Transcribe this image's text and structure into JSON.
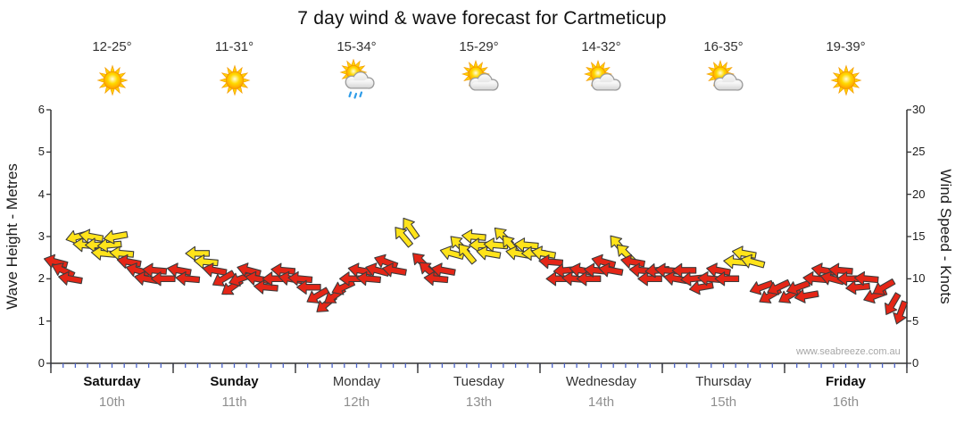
{
  "title": "7 day wind & wave forecast for Cartmeticup",
  "watermark": "www.seabreeze.com.au",
  "left_axis": {
    "label": "Wave Height - Metres",
    "ticks": [
      0,
      1,
      2,
      3,
      4,
      5,
      6
    ],
    "range": [
      0,
      6
    ]
  },
  "right_axis": {
    "label": "Wind Speed - Knots",
    "ticks": [
      0,
      5,
      10,
      15,
      20,
      25,
      30
    ],
    "range": [
      0,
      30
    ]
  },
  "days": [
    {
      "name": "Saturday",
      "date": "10th",
      "temp": "12-25°",
      "icon": "sunny",
      "bold": true
    },
    {
      "name": "Sunday",
      "date": "11th",
      "temp": "11-31°",
      "icon": "sunny",
      "bold": true
    },
    {
      "name": "Monday",
      "date": "12th",
      "temp": "15-34°",
      "icon": "sun-cloud-rain",
      "bold": false
    },
    {
      "name": "Tuesday",
      "date": "13th",
      "temp": "15-29°",
      "icon": "sun-cloud",
      "bold": false
    },
    {
      "name": "Wednesday",
      "date": "14th",
      "temp": "14-32°",
      "icon": "sun-cloud",
      "bold": false
    },
    {
      "name": "Thursday",
      "date": "15th",
      "temp": "16-35°",
      "icon": "sun-cloud",
      "bold": false
    },
    {
      "name": "Friday",
      "date": "16th",
      "temp": "19-39°",
      "icon": "sunny",
      "bold": true
    }
  ],
  "colors": {
    "arrow_yellow": "#ffe31a",
    "arrow_red": "#e42617",
    "arrow_outline": "#3c3c3c",
    "axis": "#333333",
    "minor_tick": "#4a63c8"
  },
  "chart_data": {
    "type": "scatter",
    "marker": "directional-arrow",
    "title": "7 day wind & wave forecast for Cartmeticup",
    "xlabel": "",
    "ylabel_left": "Wave Height - Metres",
    "ylabel_right": "Wind Speed - Knots",
    "x_categories": [
      "Saturday 10th",
      "Sunday 11th",
      "Monday 12th",
      "Tuesday 13th",
      "Wednesday 14th",
      "Thursday 15th",
      "Friday 16th"
    ],
    "x_range_days": [
      0,
      7
    ],
    "y_range_knots": [
      0,
      30
    ],
    "y_range_metres": [
      0,
      6
    ],
    "grid": false,
    "legend": "none",
    "points_columns": [
      "day_x_0to7",
      "wind_speed_knots",
      "arrow_direction_deg_cw_from_east",
      "color"
    ],
    "points": [
      [
        0.04,
        12,
        195,
        "red"
      ],
      [
        0.1,
        11,
        205,
        "red"
      ],
      [
        0.16,
        10,
        190,
        "red"
      ],
      [
        0.22,
        15,
        165,
        "yellow"
      ],
      [
        0.28,
        14,
        185,
        "yellow"
      ],
      [
        0.33,
        15,
        190,
        "yellow"
      ],
      [
        0.38,
        14,
        180,
        "yellow"
      ],
      [
        0.43,
        13,
        185,
        "yellow"
      ],
      [
        0.48,
        14,
        175,
        "yellow"
      ],
      [
        0.53,
        15,
        170,
        "yellow"
      ],
      [
        0.58,
        13,
        185,
        "yellow"
      ],
      [
        0.64,
        12,
        190,
        "red"
      ],
      [
        0.71,
        11,
        195,
        "red"
      ],
      [
        0.78,
        10,
        190,
        "red"
      ],
      [
        0.85,
        11,
        185,
        "red"
      ],
      [
        0.92,
        10,
        180,
        "red"
      ],
      [
        1.05,
        11,
        190,
        "red"
      ],
      [
        1.12,
        10,
        185,
        "red"
      ],
      [
        1.2,
        13,
        180,
        "yellow"
      ],
      [
        1.27,
        12,
        185,
        "yellow"
      ],
      [
        1.34,
        11,
        190,
        "red"
      ],
      [
        1.41,
        10,
        150,
        "red"
      ],
      [
        1.48,
        9,
        145,
        "red"
      ],
      [
        1.55,
        10,
        160,
        "red"
      ],
      [
        1.62,
        11,
        195,
        "red"
      ],
      [
        1.69,
        10,
        190,
        "red"
      ],
      [
        1.76,
        9,
        185,
        "red"
      ],
      [
        1.83,
        10,
        180,
        "red"
      ],
      [
        1.9,
        11,
        185,
        "red"
      ],
      [
        1.96,
        10,
        190,
        "red"
      ],
      [
        2.04,
        10,
        185,
        "red"
      ],
      [
        2.11,
        9,
        180,
        "red"
      ],
      [
        2.18,
        8,
        150,
        "red"
      ],
      [
        2.25,
        7,
        140,
        "red"
      ],
      [
        2.32,
        8,
        145,
        "red"
      ],
      [
        2.39,
        9,
        155,
        "red"
      ],
      [
        2.46,
        10,
        180,
        "red"
      ],
      [
        2.53,
        11,
        190,
        "red"
      ],
      [
        2.6,
        10,
        185,
        "red"
      ],
      [
        2.67,
        11,
        195,
        "red"
      ],
      [
        2.74,
        12,
        200,
        "red"
      ],
      [
        2.81,
        11,
        190,
        "red"
      ],
      [
        2.88,
        15,
        230,
        "yellow"
      ],
      [
        2.94,
        16,
        235,
        "yellow"
      ],
      [
        3.03,
        12,
        225,
        "red"
      ],
      [
        3.09,
        11,
        220,
        "red"
      ],
      [
        3.15,
        10,
        185,
        "red"
      ],
      [
        3.21,
        11,
        190,
        "red"
      ],
      [
        3.28,
        13,
        195,
        "yellow"
      ],
      [
        3.34,
        14,
        225,
        "yellow"
      ],
      [
        3.4,
        13,
        230,
        "yellow"
      ],
      [
        3.46,
        15,
        185,
        "yellow"
      ],
      [
        3.52,
        14,
        180,
        "yellow"
      ],
      [
        3.58,
        13,
        190,
        "yellow"
      ],
      [
        3.64,
        14,
        185,
        "yellow"
      ],
      [
        3.7,
        15,
        225,
        "yellow"
      ],
      [
        3.76,
        14,
        230,
        "yellow"
      ],
      [
        3.82,
        13,
        190,
        "yellow"
      ],
      [
        3.89,
        14,
        185,
        "yellow"
      ],
      [
        3.95,
        13,
        180,
        "yellow"
      ],
      [
        4.03,
        13,
        190,
        "yellow"
      ],
      [
        4.09,
        12,
        185,
        "red"
      ],
      [
        4.15,
        10,
        180,
        "red"
      ],
      [
        4.21,
        11,
        175,
        "red"
      ],
      [
        4.28,
        10,
        185,
        "red"
      ],
      [
        4.34,
        11,
        190,
        "red"
      ],
      [
        4.4,
        10,
        180,
        "red"
      ],
      [
        4.46,
        11,
        185,
        "red"
      ],
      [
        4.52,
        12,
        195,
        "red"
      ],
      [
        4.58,
        11,
        190,
        "red"
      ],
      [
        4.64,
        14,
        230,
        "yellow"
      ],
      [
        4.7,
        13,
        225,
        "yellow"
      ],
      [
        4.76,
        12,
        190,
        "red"
      ],
      [
        4.83,
        11,
        185,
        "red"
      ],
      [
        4.9,
        10,
        180,
        "red"
      ],
      [
        4.96,
        11,
        175,
        "red"
      ],
      [
        5.04,
        11,
        185,
        "red"
      ],
      [
        5.11,
        10,
        190,
        "red"
      ],
      [
        5.18,
        11,
        180,
        "red"
      ],
      [
        5.25,
        10,
        175,
        "red"
      ],
      [
        5.32,
        9,
        170,
        "red"
      ],
      [
        5.39,
        10,
        185,
        "red"
      ],
      [
        5.46,
        11,
        190,
        "red"
      ],
      [
        5.53,
        10,
        180,
        "red"
      ],
      [
        5.6,
        12,
        185,
        "yellow"
      ],
      [
        5.67,
        13,
        190,
        "yellow"
      ],
      [
        5.74,
        12,
        195,
        "yellow"
      ],
      [
        5.81,
        9,
        160,
        "red"
      ],
      [
        5.88,
        8,
        150,
        "red"
      ],
      [
        5.95,
        9,
        155,
        "red"
      ],
      [
        6.04,
        8,
        150,
        "red"
      ],
      [
        6.11,
        9,
        160,
        "red"
      ],
      [
        6.18,
        8,
        170,
        "red"
      ],
      [
        6.25,
        10,
        185,
        "red"
      ],
      [
        6.32,
        11,
        190,
        "red"
      ],
      [
        6.39,
        10,
        195,
        "red"
      ],
      [
        6.46,
        11,
        185,
        "red"
      ],
      [
        6.53,
        10,
        180,
        "red"
      ],
      [
        6.6,
        9,
        175,
        "red"
      ],
      [
        6.67,
        10,
        185,
        "red"
      ],
      [
        6.74,
        8,
        160,
        "red"
      ],
      [
        6.81,
        9,
        150,
        "red"
      ],
      [
        6.88,
        7,
        120,
        "red"
      ],
      [
        6.95,
        6,
        110,
        "red"
      ]
    ]
  }
}
